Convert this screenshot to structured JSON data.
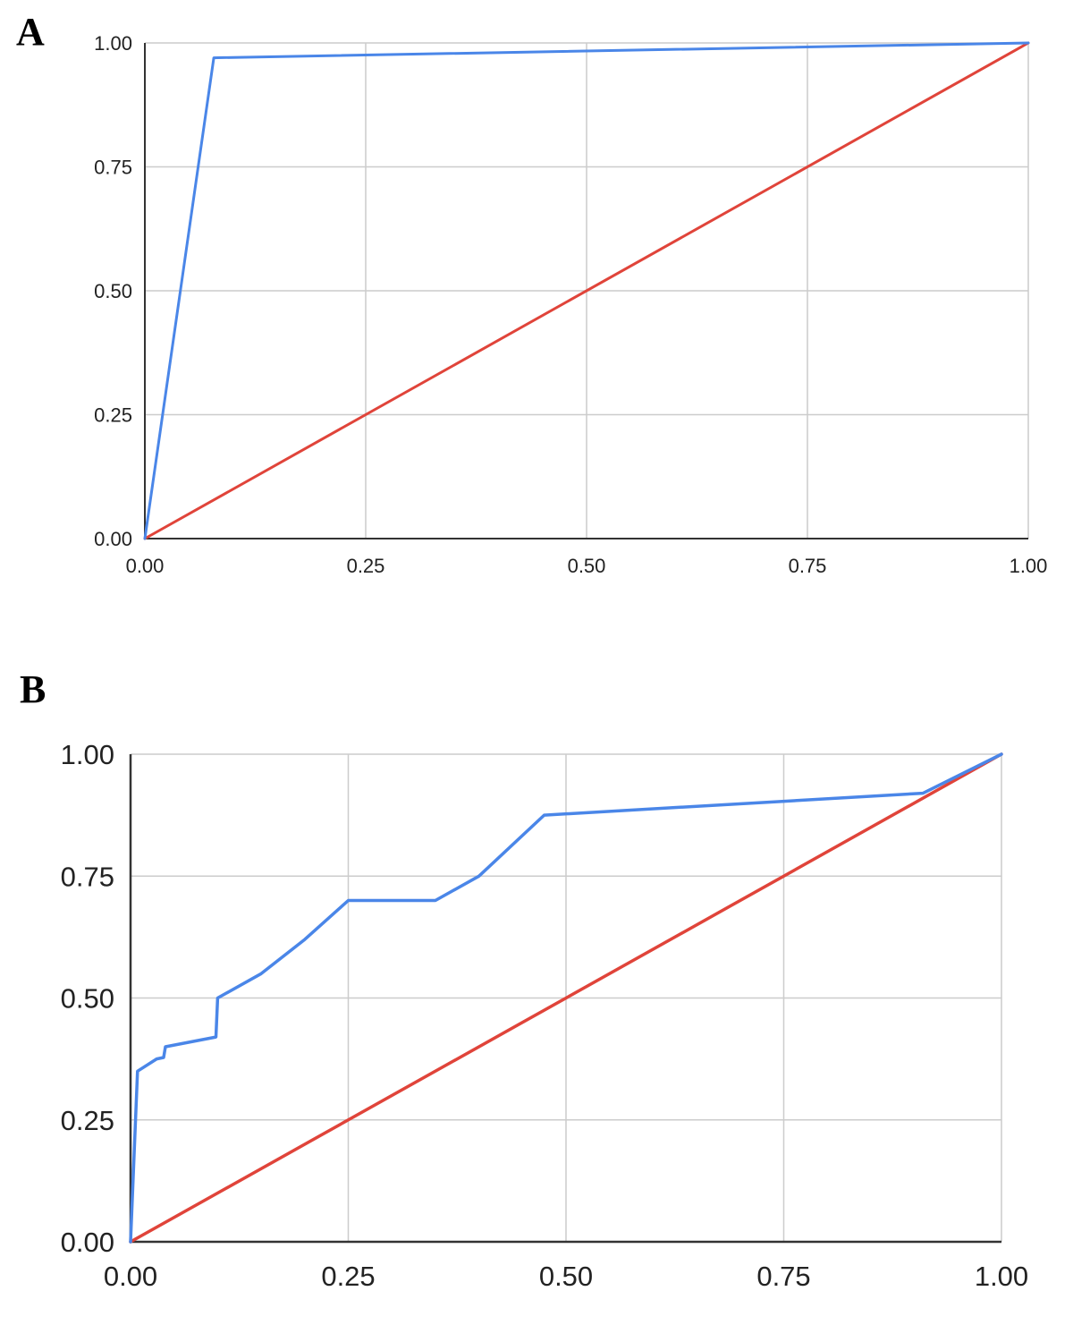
{
  "chart_data": [
    {
      "panel": "A",
      "type": "line",
      "title": "",
      "xlabel": "",
      "ylabel": "",
      "xlim": [
        0,
        1
      ],
      "ylim": [
        0,
        1
      ],
      "xticks": [
        "0.00",
        "0.25",
        "0.50",
        "0.75",
        "1.00"
      ],
      "yticks": [
        "0.00",
        "0.25",
        "0.50",
        "0.75",
        "1.00"
      ],
      "grid": true,
      "series": [
        {
          "color": "#4a86e8",
          "x": [
            0,
            0.078,
            1
          ],
          "y": [
            0,
            0.97,
            1
          ]
        },
        {
          "color": "#e0443a",
          "x": [
            0,
            1
          ],
          "y": [
            0,
            1
          ]
        }
      ]
    },
    {
      "panel": "B",
      "type": "line",
      "title": "",
      "xlabel": "",
      "ylabel": "",
      "xlim": [
        0,
        1
      ],
      "ylim": [
        0,
        1
      ],
      "xticks": [
        "0.00",
        "0.25",
        "0.50",
        "0.75",
        "1.00"
      ],
      "yticks": [
        "0.00",
        "0.25",
        "0.50",
        "0.75",
        "1.00"
      ],
      "grid": true,
      "series": [
        {
          "color": "#4a86e8",
          "x": [
            0,
            0.008,
            0.03,
            0.038,
            0.04,
            0.098,
            0.1,
            0.15,
            0.2,
            0.25,
            0.35,
            0.4,
            0.475,
            0.91,
            1
          ],
          "y": [
            0,
            0.35,
            0.375,
            0.378,
            0.4,
            0.42,
            0.5,
            0.55,
            0.62,
            0.7,
            0.7,
            0.75,
            0.875,
            0.92,
            1
          ]
        },
        {
          "color": "#e0443a",
          "x": [
            0,
            1
          ],
          "y": [
            0,
            1
          ]
        }
      ]
    }
  ]
}
